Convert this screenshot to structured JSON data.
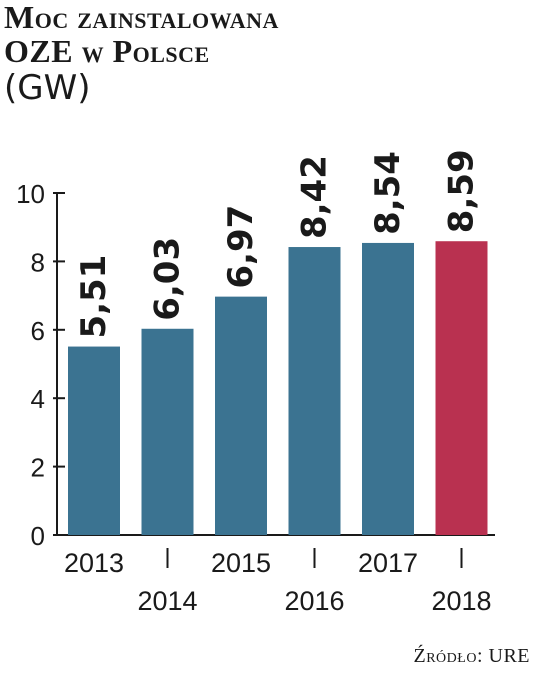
{
  "title": {
    "line1": "Moc zainstalowana",
    "line2": "OZE w Polsce",
    "unit": "(GW)"
  },
  "source": "Źródło: URE",
  "colors": {
    "bar": "#3b7391",
    "highlight": "#b93150",
    "text": "#1a1a1a"
  },
  "chart_data": {
    "type": "bar",
    "categories": [
      "2013",
      "2014",
      "2015",
      "2016",
      "2017",
      "2018"
    ],
    "values": [
      5.51,
      6.03,
      6.97,
      8.42,
      8.54,
      8.59
    ],
    "value_labels": [
      "5,51",
      "6,03",
      "6,97",
      "8,42",
      "8,54",
      "8,59"
    ],
    "highlight_category": "2018",
    "title": "Moc zainstalowana OZE w Polsce",
    "ylabel": "(GW)",
    "ylim": [
      0,
      10
    ],
    "yticks": [
      0,
      2,
      4,
      6,
      8,
      10
    ],
    "grid": false
  }
}
